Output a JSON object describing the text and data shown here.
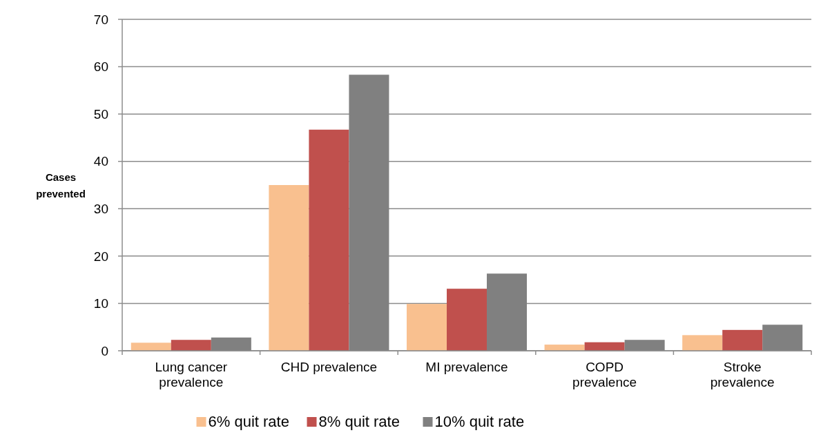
{
  "chart_data": {
    "type": "bar",
    "ylabel": "Cases prevented",
    "categories": [
      "Lung cancer prevalence",
      "CHD prevalence",
      "MI prevalence",
      "COPD prevalence",
      "Stroke prevalence"
    ],
    "series": [
      {
        "name": "6% quit rate",
        "color": "#f9c08f",
        "values": [
          1.7,
          35.0,
          9.9,
          1.3,
          3.3
        ]
      },
      {
        "name": "8% quit rate",
        "color": "#c0504d",
        "values": [
          2.3,
          46.7,
          13.1,
          1.8,
          4.4
        ]
      },
      {
        "name": "10% quit rate",
        "color": "#808080",
        "values": [
          2.8,
          58.3,
          16.3,
          2.3,
          5.5
        ]
      }
    ],
    "ylim": [
      0,
      70
    ],
    "yticks": [
      0,
      10,
      20,
      30,
      40,
      50,
      60,
      70
    ],
    "grid": "y",
    "legend": "bottom"
  }
}
